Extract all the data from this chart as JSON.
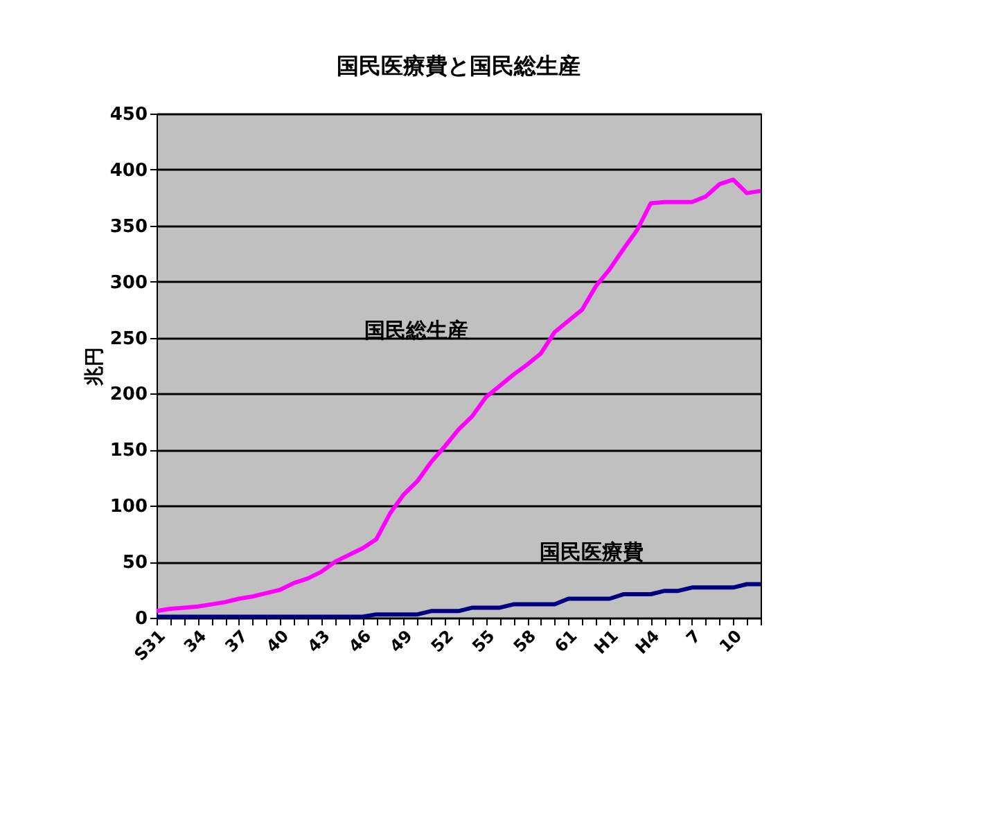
{
  "chart_data": {
    "type": "line",
    "title": "国民医療費と国民総生産",
    "ylabel": "兆円",
    "categories": [
      "S31",
      null,
      null,
      "34",
      null,
      null,
      "37",
      null,
      null,
      "40",
      null,
      null,
      "43",
      null,
      null,
      "46",
      null,
      null,
      "49",
      null,
      null,
      "52",
      null,
      null,
      "55",
      null,
      null,
      "58",
      null,
      null,
      "61",
      null,
      null,
      "H1",
      null,
      null,
      "H4",
      null,
      null,
      "7",
      null,
      null,
      "10",
      null,
      null
    ],
    "series": [
      {
        "name": "国民総生産",
        "color": "#ff00ff",
        "values": [
          6,
          8,
          9,
          10,
          12,
          14,
          17,
          19,
          22,
          25,
          31,
          35,
          41,
          50,
          56,
          62,
          70,
          93,
          110,
          122,
          139,
          153,
          168,
          180,
          197,
          207,
          217,
          226,
          236,
          255,
          265,
          275,
          296,
          311,
          329,
          346,
          370,
          371,
          371,
          371,
          376,
          387,
          391,
          379,
          381
        ]
      },
      {
        "name": "国民医療費",
        "color": "#000080",
        "values": [
          1,
          1,
          1,
          1,
          1,
          1,
          1,
          1,
          1,
          1,
          1,
          1,
          1,
          1,
          1,
          1,
          3,
          3,
          3,
          3,
          6,
          6,
          6,
          9,
          9,
          9,
          12,
          12,
          12,
          12,
          17,
          17,
          17,
          17,
          21,
          21,
          21,
          24,
          24,
          27,
          27,
          27,
          27,
          30,
          30
        ]
      }
    ],
    "ylim": [
      0,
      450
    ],
    "yticks": [
      0,
      50,
      100,
      150,
      200,
      250,
      300,
      350,
      400,
      450
    ],
    "grid": "y",
    "legend": false,
    "marker": "none",
    "line_style": "solid"
  }
}
